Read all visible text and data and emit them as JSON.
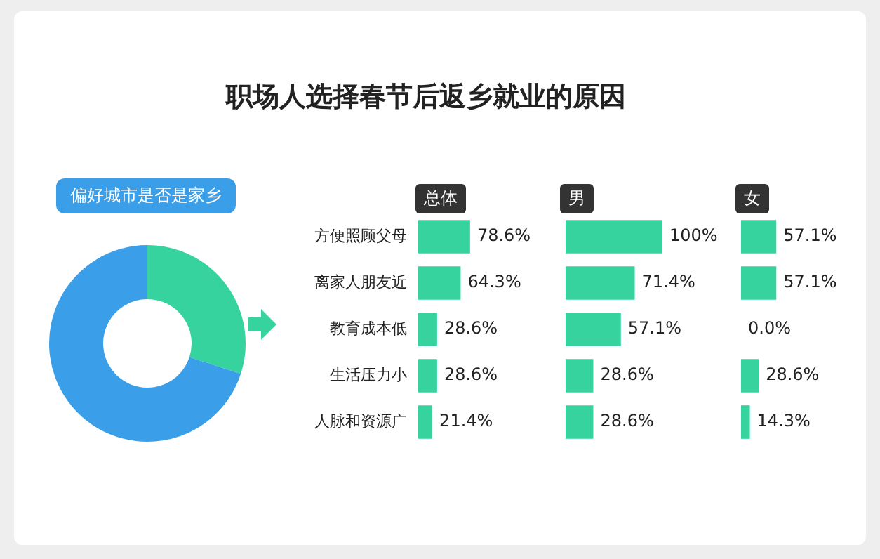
{
  "chart_data": [
    {
      "type": "other",
      "title": "职场人选择春节后返乡就业的原因"
    },
    {
      "type": "donut",
      "title": "偏好城市是否是家乡",
      "categories": [
        null,
        null
      ],
      "values": [
        30,
        70
      ],
      "colors": [
        "#36d39f",
        "#3a9fe8"
      ]
    },
    {
      "type": "bar",
      "orientation": "horizontal",
      "title": "总体",
      "categories": [
        "方便照顾父母",
        "离家人朋友近",
        "教育成本低",
        "生活压力小",
        "人脉和资源广"
      ],
      "series": [
        {
          "color": "#36d39f",
          "values": [
            78.6,
            64.3,
            28.6,
            28.6,
            21.4
          ],
          "value_labels": [
            "78.6%",
            "64.3%",
            "28.6%",
            "28.6%",
            "21.4%"
          ]
        }
      ],
      "tick_labels": "y"
    },
    {
      "type": "bar",
      "orientation": "horizontal",
      "title": "男",
      "categories": [
        null,
        null,
        null,
        null,
        null
      ],
      "series": [
        {
          "color": "#36d39f",
          "values": [
            100,
            71.4,
            57.1,
            28.6,
            28.6
          ],
          "value_labels": [
            "100%",
            "71.4%",
            "57.1%",
            "28.6%",
            "28.6%"
          ]
        }
      ],
      "tick_labels": false
    },
    {
      "type": "bar",
      "orientation": "horizontal",
      "title": "女",
      "categories": [
        null,
        null,
        null,
        null,
        null
      ],
      "series": [
        {
          "color": "#36d39f",
          "values": [
            57.1,
            57.1,
            0.0,
            28.6,
            14.3
          ],
          "value_labels": [
            "57.1%",
            "57.1%",
            "0.0%",
            "28.6%",
            "14.3%"
          ]
        }
      ],
      "tick_labels": false
    }
  ]
}
